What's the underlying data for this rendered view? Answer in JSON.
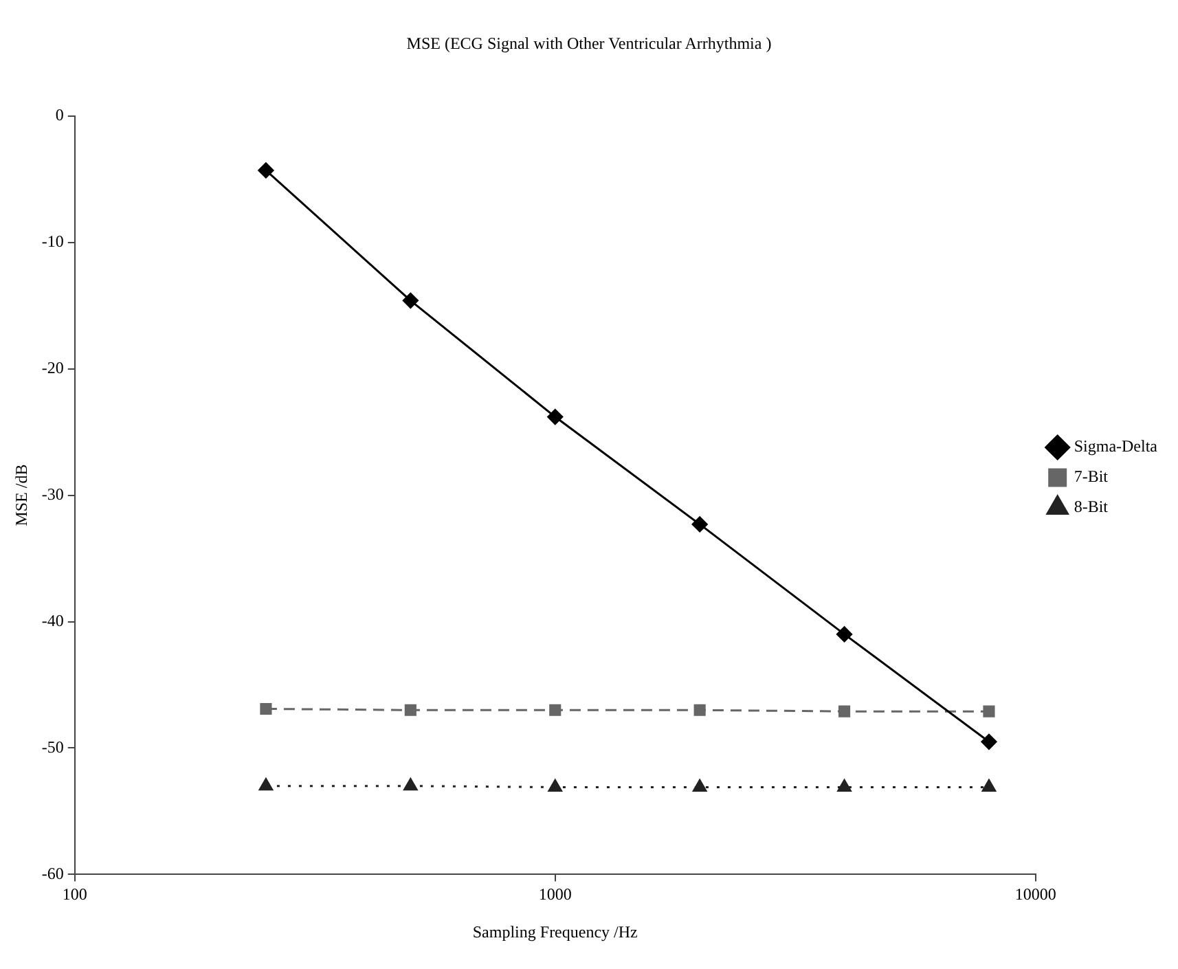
{
  "chart_data": {
    "type": "line",
    "title": "MSE (ECG Signal with Other Ventricular Arrhythmia )",
    "xlabel": "Sampling Frequency /Hz",
    "ylabel": "MSE /dB",
    "x": [
      250,
      500,
      1000,
      2000,
      4000,
      8000
    ],
    "log": "x",
    "xlim": [
      100,
      10000
    ],
    "xticks": [
      100,
      1000,
      10000
    ],
    "ylim": [
      -60,
      0
    ],
    "yticks": [
      -60,
      -50,
      -40,
      -30,
      -20,
      -10,
      0
    ],
    "grid": false,
    "legend": "right",
    "series": [
      {
        "name": "Sigma-Delta",
        "color": "#000000",
        "marker": "diamond",
        "line_style": "solid",
        "values": [
          -4.3,
          -14.6,
          -23.8,
          -32.3,
          -41.0,
          -49.5
        ]
      },
      {
        "name": "7-Bit",
        "color": "#666666",
        "marker": "square",
        "line_style": "dashed",
        "values": [
          -46.9,
          -47.0,
          -47.0,
          -47.0,
          -47.1,
          -47.1
        ]
      },
      {
        "name": "8-Bit",
        "color": "#222222",
        "marker": "triangle",
        "line_style": "dotted",
        "values": [
          -53.0,
          -53.0,
          -53.1,
          -53.1,
          -53.1,
          -53.1
        ]
      }
    ]
  }
}
